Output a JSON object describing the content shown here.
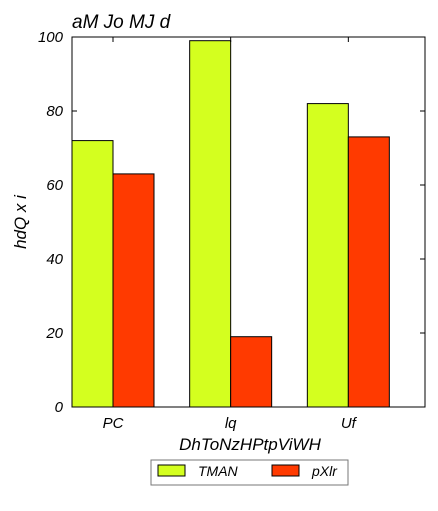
{
  "chart_data": {
    "type": "bar",
    "title": "aM  Jo MJ d",
    "xlabel": "DhToNzHPtpViWH",
    "ylabel": "hdQ x i",
    "categories": [
      "PC",
      "lq",
      "Uf"
    ],
    "series": [
      {
        "name": "TMAN",
        "values": [
          72,
          99,
          82
        ],
        "color": "#d4ff1f"
      },
      {
        "name": "pXlr",
        "values": [
          63,
          19,
          73
        ],
        "color": "#ff3a00"
      }
    ],
    "ylim": [
      0,
      100
    ],
    "yticks": [
      0,
      20,
      40,
      60,
      80,
      100
    ],
    "grid": false,
    "legend_position": "bottom"
  }
}
